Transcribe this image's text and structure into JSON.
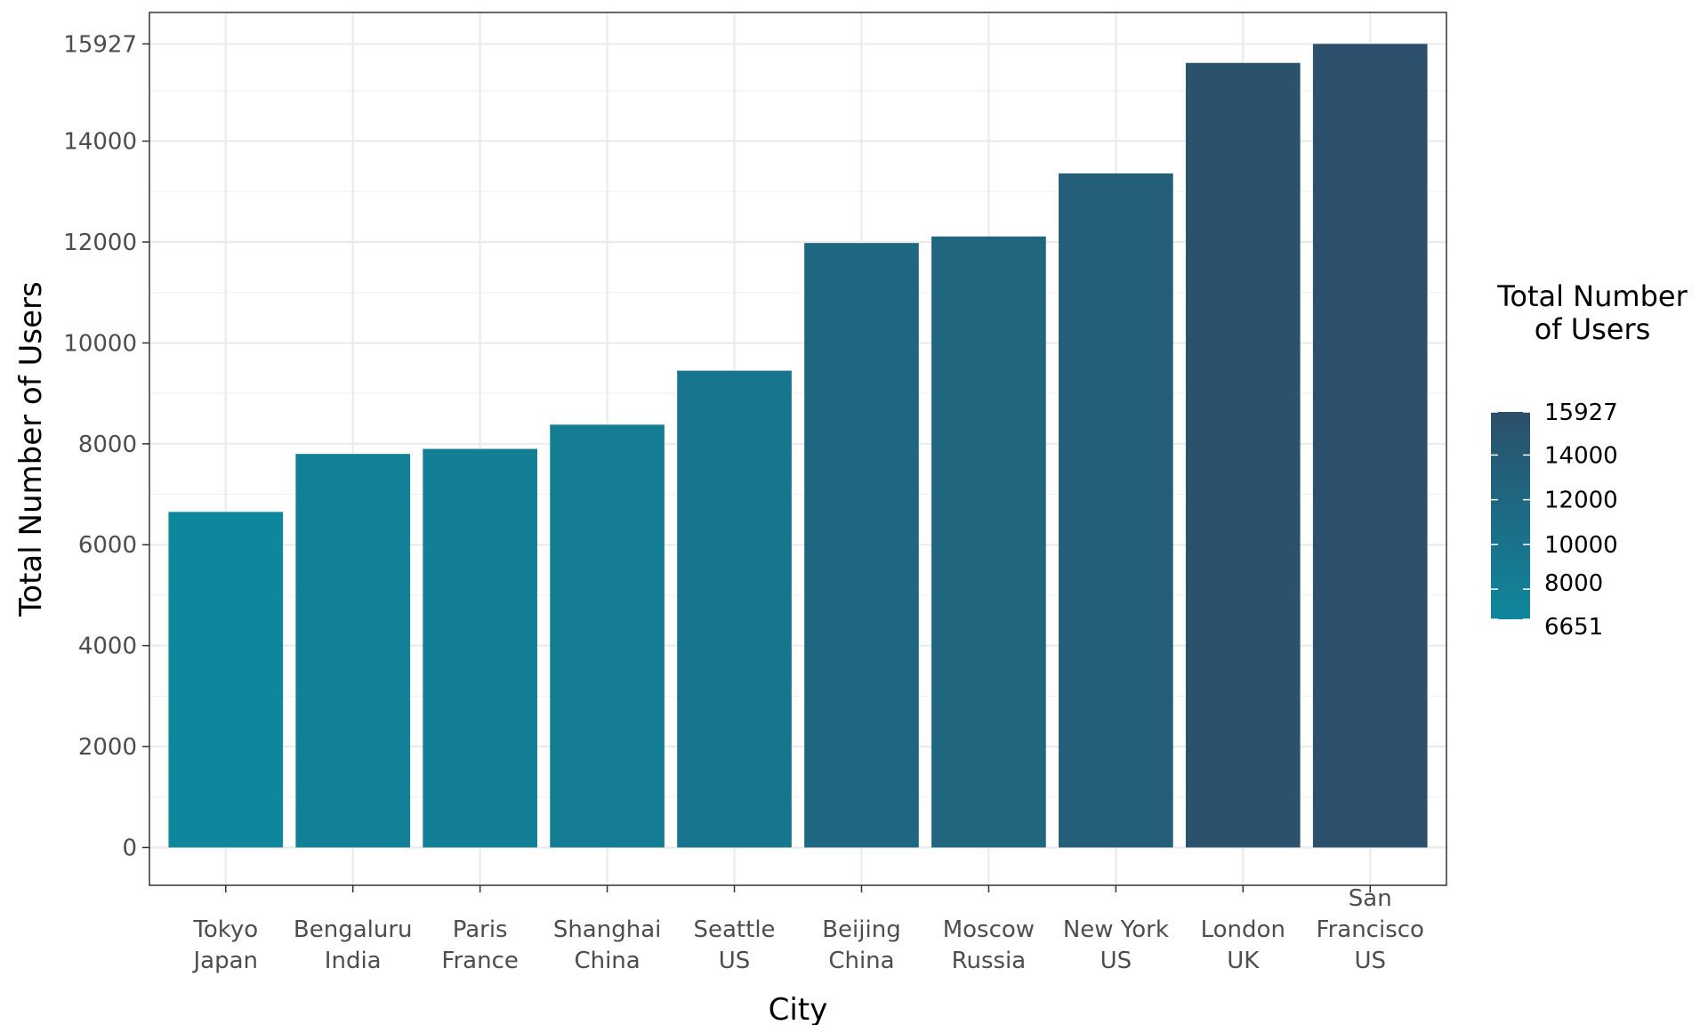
{
  "chart_data": {
    "type": "bar",
    "categories": [
      [
        "Tokyo",
        "Japan"
      ],
      [
        "Bengaluru",
        "India"
      ],
      [
        "Paris",
        "France"
      ],
      [
        "Shanghai",
        "China"
      ],
      [
        "Seattle",
        "US"
      ],
      [
        "Beijing",
        "China"
      ],
      [
        "Moscow",
        "Russia"
      ],
      [
        "New York",
        "US"
      ],
      [
        "London",
        "UK"
      ],
      [
        "San",
        "Francisco",
        "US"
      ]
    ],
    "values": [
      6651,
      7800,
      7900,
      8380,
      9450,
      11980,
      12110,
      13360,
      15550,
      15927
    ],
    "xlabel": "City",
    "ylabel": "Total Number of Users",
    "ylim": [
      -750,
      16550
    ],
    "yticks": [
      0,
      2000,
      4000,
      6000,
      8000,
      10000,
      12000,
      14000,
      15927
    ],
    "yticks_labels": [
      "0",
      "2000",
      "4000",
      "6000",
      "8000",
      "10000",
      "12000",
      "14000",
      "15927"
    ],
    "grid": true,
    "legend": {
      "title_lines": [
        "Total Number",
        "of Users"
      ],
      "placement": "right",
      "min": 6651,
      "max": 15927,
      "ticks": [
        6651,
        8000,
        10000,
        12000,
        14000,
        15927
      ],
      "tick_labels": [
        "6651",
        "8000",
        "10000",
        "12000",
        "14000",
        "15927"
      ],
      "color_low": "#0e879c",
      "color_high": "#2c4f6b"
    }
  }
}
